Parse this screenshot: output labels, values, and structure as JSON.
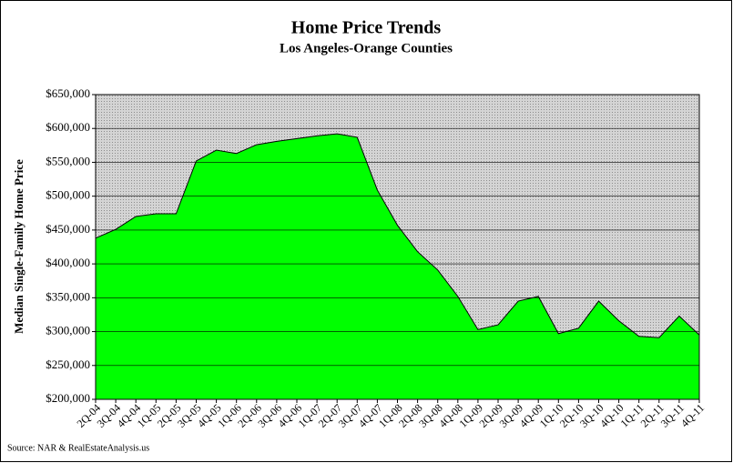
{
  "chart_data": {
    "type": "area",
    "title": "Home Price Trends",
    "subtitle": "Los Angeles-Orange Counties",
    "y_label": "Median Single-Family Home Price",
    "source": "Source: NAR & RealEstateAnalysis.us",
    "categories": [
      "2Q-04",
      "3Q-04",
      "4Q-04",
      "1Q-05",
      "2Q-05",
      "3Q-05",
      "4Q-05",
      "1Q-06",
      "2Q-06",
      "3Q-06",
      "4Q-06",
      "1Q-07",
      "2Q-07",
      "3Q-07",
      "4Q-07",
      "1Q-08",
      "2Q-08",
      "3Q-08",
      "4Q-08",
      "1Q-09",
      "2Q-09",
      "3Q-09",
      "4Q-09",
      "1Q-10",
      "2Q-10",
      "3Q-10",
      "4Q-10",
      "1Q-11",
      "2Q-11",
      "3Q-11",
      "4Q-11"
    ],
    "values": [
      438000,
      451000,
      470000,
      474000,
      474000,
      552000,
      568000,
      563000,
      576000,
      581000,
      585000,
      589000,
      592000,
      587000,
      509000,
      457000,
      418000,
      391000,
      352000,
      303000,
      310000,
      345000,
      352000,
      297000,
      305000,
      345000,
      316000,
      293000,
      291000,
      323000,
      295000
    ],
    "color": "#00ff00",
    "ylim": [
      200000,
      650000
    ],
    "yticks": [
      {
        "value": 200000,
        "label": "$200,000"
      },
      {
        "value": 250000,
        "label": "$250,000"
      },
      {
        "value": 300000,
        "label": "$300,000"
      },
      {
        "value": 350000,
        "label": "$350,000"
      },
      {
        "value": 400000,
        "label": "$400,000"
      },
      {
        "value": 450000,
        "label": "$450,000"
      },
      {
        "value": 500000,
        "label": "$500,000"
      },
      {
        "value": 550000,
        "label": "$550,000"
      },
      {
        "value": 600000,
        "label": "$600,000"
      },
      {
        "value": 650000,
        "label": "$650,000"
      }
    ],
    "grid": true
  }
}
